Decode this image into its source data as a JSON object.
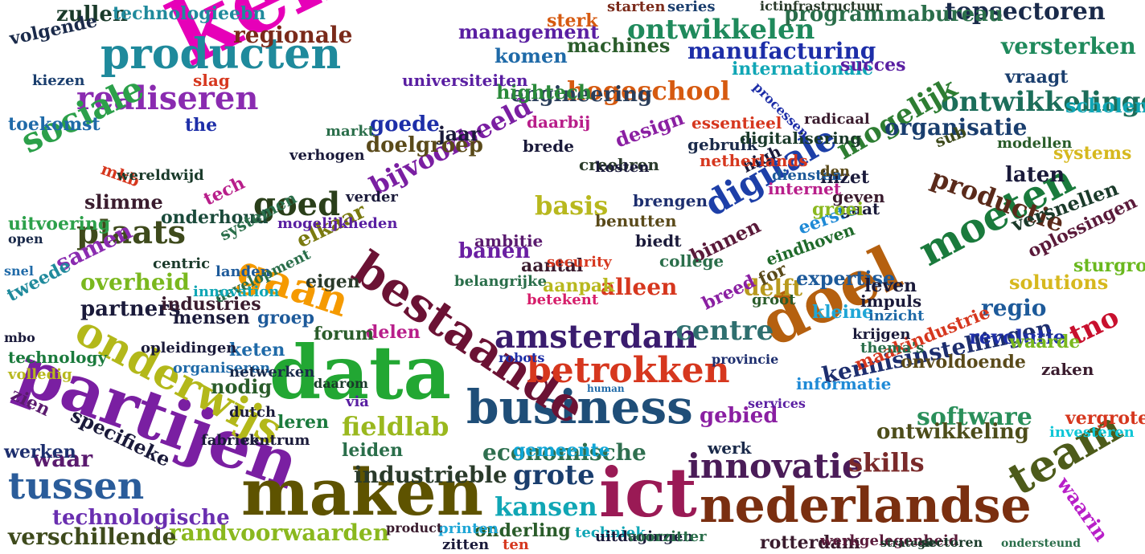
{
  "words": [
    {
      "text": "kennis",
      "color": "#e600b8"
    },
    {
      "text": "data",
      "color": "#22a733"
    },
    {
      "text": "partijen",
      "color": "#7a1fa2"
    },
    {
      "text": "maken",
      "color": "#5e5300"
    },
    {
      "text": "ict",
      "color": "#9a1a55"
    },
    {
      "text": "business",
      "color": "#1f4e78"
    },
    {
      "text": "nederlandse",
      "color": "#7a2f10"
    },
    {
      "text": "doel",
      "color": "#b5600f"
    },
    {
      "text": "bestaande",
      "color": "#6b1234"
    },
    {
      "text": "producten",
      "color": "#1f8a9c"
    },
    {
      "text": "innovatie",
      "color": "#4a1c58"
    },
    {
      "text": "onderwijs",
      "color": "#b3b81a"
    },
    {
      "text": "tussen",
      "color": "#2a5c9a"
    },
    {
      "text": "betrokken",
      "color": "#d6371e"
    },
    {
      "text": "moeten",
      "color": "#1a7a3c"
    },
    {
      "text": "amsterdam",
      "color": "#3a1c6e"
    },
    {
      "text": "team",
      "color": "#4d5b1a"
    },
    {
      "text": "realiseren",
      "color": "#8a2bb0"
    },
    {
      "text": "sociale",
      "color": "#2ca04a"
    },
    {
      "text": "gaan",
      "color": "#f59a00"
    },
    {
      "text": "centre",
      "color": "#2f6f6f"
    },
    {
      "text": "digitale",
      "color": "#1d3fa8"
    },
    {
      "text": "tno",
      "color": "#c8102e"
    },
    {
      "text": "goed",
      "color": "#2a3f1a"
    },
    {
      "text": "plaats",
      "color": "#3e4a1c"
    },
    {
      "text": "grote",
      "color": "#1a3e6e"
    },
    {
      "text": "productie",
      "color": "#5a2a1a"
    },
    {
      "text": "fieldlab",
      "color": "#9ab81e"
    },
    {
      "text": "kansen",
      "color": "#10a6b5"
    },
    {
      "text": "bijvoorbeeld",
      "color": "#7a1fa2"
    },
    {
      "text": "software",
      "color": "#2a8f5a"
    },
    {
      "text": "skills",
      "color": "#7a2a2a"
    },
    {
      "text": "ontwikkelingen",
      "color": "#1c6e5a"
    },
    {
      "text": "kennisinstellingen",
      "color": "#1d2e6e"
    },
    {
      "text": "ontwikkelen",
      "color": "#1f8a5c"
    },
    {
      "text": "topsectoren",
      "color": "#1a2a4a"
    },
    {
      "text": "mogelijk",
      "color": "#2e7d32"
    },
    {
      "text": "hogeschool",
      "color": "#d65a10"
    },
    {
      "text": "randvoorwaarden",
      "color": "#8ab81e"
    },
    {
      "text": "economische",
      "color": "#2f6f4f"
    },
    {
      "text": "industrieble",
      "color": "#2a3a2a"
    },
    {
      "text": "verschillende",
      "color": "#3e4a1c"
    },
    {
      "text": "technologische",
      "color": "#6a2fb0"
    },
    {
      "text": "regio",
      "color": "#1d5a9a"
    },
    {
      "text": "organisatie",
      "color": "#1a3e6e"
    },
    {
      "text": "ontwikkeling",
      "color": "#4d4d1a"
    },
    {
      "text": "basis",
      "color": "#b8b81e"
    },
    {
      "text": "elkaar",
      "color": "#7a7a10"
    },
    {
      "text": "engineering",
      "color": "#2a3e5a"
    },
    {
      "text": "alleen",
      "color": "#d6371e"
    },
    {
      "text": "delft",
      "color": "#b89a1e"
    },
    {
      "text": "partners",
      "color": "#1a1a3a"
    },
    {
      "text": "overheid",
      "color": "#7ab81e"
    },
    {
      "text": "samen",
      "color": "#8a2bb0"
    },
    {
      "text": "waar",
      "color": "#5a1a6e"
    },
    {
      "text": "gebied",
      "color": "#8a1fa2"
    },
    {
      "text": "versterken",
      "color": "#1f8a5c"
    },
    {
      "text": "manufacturing",
      "color": "#1d2ea8"
    },
    {
      "text": "programmabureau",
      "color": "#2a6e4a"
    },
    {
      "text": "regionale",
      "color": "#7a2a1a"
    },
    {
      "text": "zullen",
      "color": "#1a3a2a"
    },
    {
      "text": "technologieebn",
      "color": "#1f8a9c"
    },
    {
      "text": "volgende",
      "color": "#1a2a4a"
    },
    {
      "text": "management",
      "color": "#5a1fa2"
    },
    {
      "text": "machines",
      "color": "#2a5c2a"
    },
    {
      "text": "komen",
      "color": "#1f6aa8"
    },
    {
      "text": "hightech",
      "color": "#2a8a3a"
    },
    {
      "text": "goede",
      "color": "#1d2ea8"
    },
    {
      "text": "doelgroep",
      "color": "#5a4a1a"
    },
    {
      "text": "design",
      "color": "#8a1fa2"
    },
    {
      "text": "uitvoering",
      "color": "#2ca04a"
    },
    {
      "text": "slimme",
      "color": "#3a1c2e"
    },
    {
      "text": "toekomst",
      "color": "#1f6aa8"
    },
    {
      "text": "onderhoud",
      "color": "#1a4a3a"
    },
    {
      "text": "groep",
      "color": "#1d5a9a"
    },
    {
      "text": "banen",
      "color": "#6a1fa2"
    },
    {
      "text": "binnen",
      "color": "#5a1a3a"
    },
    {
      "text": "expertise",
      "color": "#1d5a9a"
    },
    {
      "text": "revolutie",
      "color": "#1d2ea8"
    },
    {
      "text": "informatie",
      "color": "#1f8ad6"
    },
    {
      "text": "maakindustrie",
      "color": "#d6371e"
    },
    {
      "text": "onvoldoende",
      "color": "#5a4a1a"
    },
    {
      "text": "nodig",
      "color": "#2a5c2a"
    },
    {
      "text": "leren",
      "color": "#1a7a3c"
    },
    {
      "text": "tweede",
      "color": "#1f8a9c"
    },
    {
      "text": "werken",
      "color": "#1d2e6e"
    },
    {
      "text": "gemeente",
      "color": "#10a6d6"
    },
    {
      "text": "leiden",
      "color": "#2a6e4a"
    },
    {
      "text": "onderling",
      "color": "#2a5c2a"
    },
    {
      "text": "rotterdam",
      "color": "#3a1c2e"
    },
    {
      "text": "waarin",
      "color": "#b81ec8"
    },
    {
      "text": "specifieke",
      "color": "#1a1a3a"
    },
    {
      "text": "zien",
      "color": "#5a1a6e"
    },
    {
      "text": "technology",
      "color": "#1a7a3c"
    },
    {
      "text": "volledig",
      "color": "#b8b81e"
    },
    {
      "text": "keten",
      "color": "#1f6aa8"
    },
    {
      "text": "delen",
      "color": "#b81e8a"
    },
    {
      "text": "forum",
      "color": "#2a5c2a"
    },
    {
      "text": "mensen",
      "color": "#1a1a3a"
    },
    {
      "text": "industries",
      "color": "#3a1c2e"
    },
    {
      "text": "eigen",
      "color": "#2a3a2a"
    },
    {
      "text": "aantal",
      "color": "#3a1c2e"
    },
    {
      "text": "aanpak",
      "color": "#b8b81e"
    },
    {
      "text": "ambitie",
      "color": "#5a1a6e"
    },
    {
      "text": "belangrijke",
      "color": "#2a6e4a"
    },
    {
      "text": "betekent",
      "color": "#d61e6a"
    },
    {
      "text": "creebren",
      "color": "#2a3a2a"
    },
    {
      "text": "brengen",
      "color": "#1d2e6e"
    },
    {
      "text": "benutten",
      "color": "#5a4a1a"
    },
    {
      "text": "biedt",
      "color": "#1a1a3a"
    },
    {
      "text": "college",
      "color": "#2a6e4a"
    },
    {
      "text": "breed",
      "color": "#8a1fa2"
    },
    {
      "text": "eerste",
      "color": "#1f8ad6"
    },
    {
      "text": "kleine",
      "color": "#1fa6d6"
    },
    {
      "text": "leven",
      "color": "#1a1a3a"
    },
    {
      "text": "impuls",
      "color": "#1a1a3a"
    },
    {
      "text": "inzicht",
      "color": "#1f6aa8"
    },
    {
      "text": "krijgen",
      "color": "#1a1a3a"
    },
    {
      "text": "thema's",
      "color": "#2a6e4a"
    },
    {
      "text": "solutions",
      "color": "#d6b81e"
    },
    {
      "text": "waarde",
      "color": "#7ab81e"
    },
    {
      "text": "zaken",
      "color": "#3a1c2e"
    },
    {
      "text": "vergroten",
      "color": "#d6371e"
    },
    {
      "text": "investeren",
      "color": "#10c6d6"
    },
    {
      "text": "werk",
      "color": "#1a2a4a"
    },
    {
      "text": "sturgroep",
      "color": "#6ab81e"
    },
    {
      "text": "oplossingen",
      "color": "#5a1a3a"
    },
    {
      "text": "versnellen",
      "color": "#1a3a2a"
    },
    {
      "text": "vraagt",
      "color": "#1a3e6e"
    },
    {
      "text": "scholen",
      "color": "#10a6b5"
    },
    {
      "text": "sub",
      "color": "#3e4a1c"
    },
    {
      "text": "systems",
      "color": "#d6b81e"
    },
    {
      "text": "laten",
      "color": "#1a1a3a"
    },
    {
      "text": "modellen",
      "color": "#2a5c2a"
    },
    {
      "text": "inzet",
      "color": "#1a1a3a"
    },
    {
      "text": "geven",
      "color": "#3a1c2e"
    },
    {
      "text": "gaat",
      "color": "#1a1a3a"
    },
    {
      "text": "groei",
      "color": "#8ab81e"
    },
    {
      "text": "internet",
      "color": "#b81e8a"
    },
    {
      "text": "diensten",
      "color": "#1d5a9a"
    },
    {
      "text": "den",
      "color": "#5a4a1a"
    },
    {
      "text": "for",
      "color": "#5a4a1a"
    },
    {
      "text": "eindhoven",
      "color": "#1f6a2a"
    },
    {
      "text": "high",
      "color": "#1a1a3a"
    },
    {
      "text": "gebruik",
      "color": "#1a2a4a"
    },
    {
      "text": "digitalisering",
      "color": "#1a3a2a"
    },
    {
      "text": "essentieel",
      "color": "#d6371e"
    },
    {
      "text": "daarbij",
      "color": "#b81e8a"
    },
    {
      "text": "jaar",
      "color": "#1a1a3a"
    },
    {
      "text": "brede",
      "color": "#1a1a3a"
    },
    {
      "text": "netherlands",
      "color": "#d6371e"
    },
    {
      "text": "kosten",
      "color": "#1a1a3a"
    },
    {
      "text": "internationale",
      "color": "#10a6b5"
    },
    {
      "text": "radicaal",
      "color": "#3a1c2e"
    },
    {
      "text": "processen",
      "color": "#1d2ea8"
    },
    {
      "text": "succes",
      "color": "#5a1fa2"
    },
    {
      "text": "sterk",
      "color": "#d65a10"
    },
    {
      "text": "series",
      "color": "#1a3e6e"
    },
    {
      "text": "ictinfrastructuur",
      "color": "#2a3a2a"
    },
    {
      "text": "starten",
      "color": "#7a2a1a"
    },
    {
      "text": "universiteiten",
      "color": "#5a1fa2"
    },
    {
      "text": "slag",
      "color": "#d6371e"
    },
    {
      "text": "kiezen",
      "color": "#1a3e6e"
    },
    {
      "text": "the",
      "color": "#1d2ea8"
    },
    {
      "text": "markt",
      "color": "#2a6e4a"
    },
    {
      "text": "mkb",
      "color": "#d6371e"
    },
    {
      "text": "tech",
      "color": "#b81e8a"
    },
    {
      "text": "systemen",
      "color": "#2a6e4a"
    },
    {
      "text": "landen",
      "color": "#1d5a9a"
    },
    {
      "text": "centric",
      "color": "#1a3a2a"
    },
    {
      "text": "development",
      "color": "#2a6e4a"
    },
    {
      "text": "innovation",
      "color": "#10a6b5"
    },
    {
      "text": "security",
      "color": "#d6371e"
    },
    {
      "text": "verder",
      "color": "#1a1a3a"
    },
    {
      "text": "verhogen",
      "color": "#1a1a3a"
    },
    {
      "text": "wereldwijd",
      "color": "#1a3a2a"
    },
    {
      "text": "open",
      "color": "#1a2a4a"
    },
    {
      "text": "snel",
      "color": "#1f6aa8"
    },
    {
      "text": "mbo",
      "color": "#1a1a3a"
    },
    {
      "text": "mogelijkheden",
      "color": "#5a1fa2"
    },
    {
      "text": "opleidingen",
      "color": "#1a1a3a"
    },
    {
      "text": "daarom",
      "color": "#1a3a2a"
    },
    {
      "text": "organiseren",
      "color": "#1f6aa8"
    },
    {
      "text": "netwerken",
      "color": "#1a2a4a"
    },
    {
      "text": "via",
      "color": "#5a1fa2"
    },
    {
      "text": "dutch",
      "color": "#1a1a3a"
    },
    {
      "text": "centrum",
      "color": "#1a1a3a"
    },
    {
      "text": "fabriek",
      "color": "#1a1a3a"
    },
    {
      "text": "groot",
      "color": "#2a5c2a"
    },
    {
      "text": "human",
      "color": "#1f6aa8"
    },
    {
      "text": "services",
      "color": "#5a1fa2"
    },
    {
      "text": "robots",
      "color": "#1d2ea8"
    },
    {
      "text": "provincie",
      "color": "#1d2e6e"
    },
    {
      "text": "zitten",
      "color": "#1a1a3a"
    },
    {
      "text": "ten",
      "color": "#d6371e"
    },
    {
      "text": "printen",
      "color": "#1fa6d6"
    },
    {
      "text": "product",
      "color": "#3a1c2e"
    },
    {
      "text": "techniek",
      "color": "#10a6b5"
    },
    {
      "text": "uitdagingen",
      "color": "#1a1a3a"
    },
    {
      "text": "voorzitter",
      "color": "#2a6e4a"
    },
    {
      "text": "werkgelegenheid",
      "color": "#5a1a3a"
    },
    {
      "text": "strategie",
      "color": "#1a3a2a"
    },
    {
      "text": "sectoren",
      "color": "#1a3a2a"
    },
    {
      "text": "ondersteund",
      "color": "#2a6e4a"
    }
  ]
}
